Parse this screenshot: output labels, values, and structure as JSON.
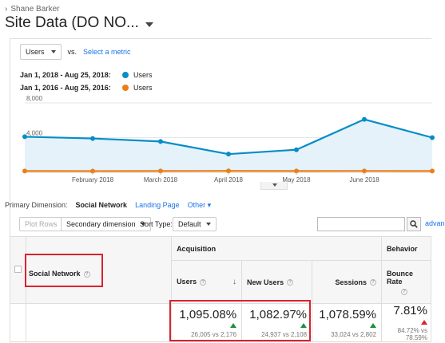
{
  "header": {
    "breadcrumb": "Shane Barker",
    "site_title": "Site Data (DO NO..."
  },
  "metric": {
    "selected": "Users",
    "vs_label": "vs.",
    "select_link": "Select a metric"
  },
  "legend": [
    {
      "date": "Jan 1, 2018 - Aug 25, 2018:",
      "label": "Users",
      "color": "#058dc7"
    },
    {
      "date": "Jan 1, 2016 - Aug 25, 2016:",
      "label": "Users",
      "color": "#ed7e17"
    }
  ],
  "chart_data": {
    "type": "line",
    "y_ticks": [
      "8,000",
      "4,000"
    ],
    "ylim": [
      0,
      8000
    ],
    "x_tick_labels": [
      "February 2018",
      "March 2018",
      "April 2018",
      "May 2018",
      "June 2018"
    ],
    "x": [
      "Jan 2018",
      "Feb 2018",
      "Mar 2018",
      "Apr 2018",
      "May 2018",
      "Jun 2018",
      "Jul 2018"
    ],
    "series": [
      {
        "name": "Users",
        "period": "Jan 1, 2018 - Aug 25, 2018",
        "color": "#058dc7",
        "values": [
          4100,
          3900,
          3550,
          2100,
          2600,
          6100,
          4000
        ]
      },
      {
        "name": "Users",
        "period": "Jan 1, 2016 - Aug 25, 2016",
        "color": "#ed7e17",
        "values": [
          150,
          140,
          150,
          160,
          150,
          155,
          150
        ]
      }
    ]
  },
  "dimension": {
    "label": "Primary Dimension:",
    "options": [
      "Social Network",
      "Landing Page",
      "Other"
    ]
  },
  "toolbar": {
    "plot_rows": "Plot Rows",
    "secondary": "Secondary dimension",
    "sort_label": "Sort Type:",
    "sort_value": "Default",
    "advanced": "advan"
  },
  "table": {
    "dim_header": "Social Network",
    "group_acq": "Acquisition",
    "group_beh": "Behavior",
    "cols": [
      "Users",
      "New Users",
      "Sessions",
      "Bounce Rate"
    ],
    "row": {
      "users": {
        "pct": "1,095.08%",
        "sub": "26,005 vs 2,176"
      },
      "new_users": {
        "pct": "1,082.97%",
        "sub": "24,937 vs 2,108"
      },
      "sessions": {
        "pct": "1,078.59%",
        "sub": "33,024 vs 2,802"
      },
      "bounce": {
        "pct": "7.81%",
        "sub": "84.72% vs 78.59%"
      }
    }
  }
}
